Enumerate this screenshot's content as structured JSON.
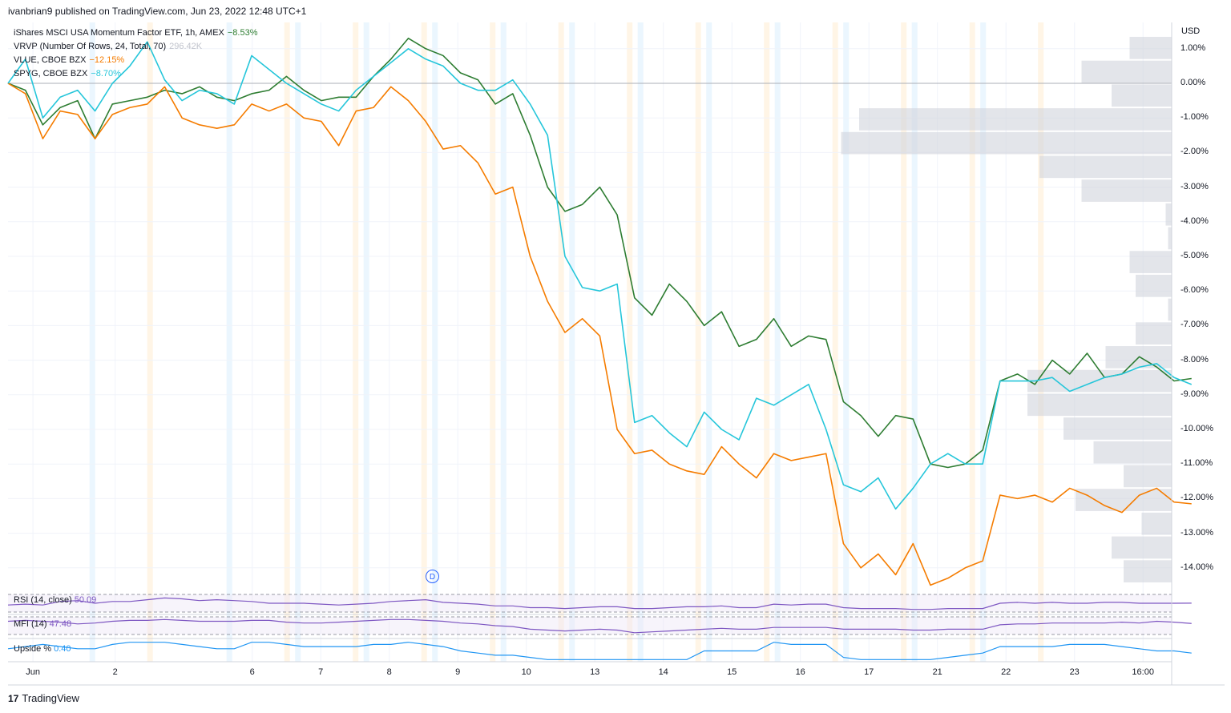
{
  "header": "ivanbrian9 published on TradingView.com, Jun 23, 2022 12:48 UTC+1",
  "legend": [
    {
      "name": "iShares MSCI USA Momentum Factor ETF, 1h, AMEX",
      "value": "−8.53%",
      "color": "#2e7d32"
    },
    {
      "name": "VRVP (Number Of Rows, 24, Total, 70)",
      "value": "296.42K",
      "color": "#d1d4dc"
    },
    {
      "name": "VLUE, CBOE BZX",
      "value": "−12.15%",
      "color": "#f57c00"
    },
    {
      "name": "SPYG, CBOE BZX",
      "value": "−8.70%",
      "color": "#26c6da"
    }
  ],
  "panes": {
    "rsi": {
      "label": "RSI (14, close)",
      "value": "50.09",
      "color": "#7e57c2"
    },
    "mfi": {
      "label": "MFI (14)",
      "value": "47.48",
      "color": "#7e57c2"
    },
    "upside": {
      "label": "Upside %",
      "value": "0.40",
      "color": "#2196f3"
    }
  },
  "footer": {
    "logo": "17",
    "brand": "TradingView"
  },
  "marker": "D",
  "chart_data": {
    "type": "line",
    "currency": "USD",
    "y_ticks": [
      "1.00%",
      "0.00%",
      "-1.00%",
      "-2.00%",
      "-3.00%",
      "-4.00%",
      "-5.00%",
      "-6.00%",
      "-7.00%",
      "-8.00%",
      "-9.00%",
      "-10.00%",
      "-11.00%",
      "-12.00%",
      "-13.00%",
      "-14.00%"
    ],
    "ylim": [
      -14.7,
      1.5
    ],
    "x_ticks": [
      {
        "label": "Jun",
        "i": 1
      },
      {
        "label": "2",
        "i": 7
      },
      {
        "label": "6",
        "i": 17
      },
      {
        "label": "7",
        "i": 22
      },
      {
        "label": "8",
        "i": 27
      },
      {
        "label": "9",
        "i": 32
      },
      {
        "label": "10",
        "i": 37
      },
      {
        "label": "13",
        "i": 42
      },
      {
        "label": "14",
        "i": 47
      },
      {
        "label": "15",
        "i": 52
      },
      {
        "label": "16",
        "i": 57
      },
      {
        "label": "17",
        "i": 62
      },
      {
        "label": "21",
        "i": 67
      },
      {
        "label": "22",
        "i": 72
      },
      {
        "label": "23",
        "i": 77
      },
      {
        "label": "16:00",
        "i": 82
      }
    ],
    "series": [
      {
        "name": "iShares MSCI USA Momentum Factor ETF",
        "color": "#2e7d32",
        "values": [
          0,
          -0.2,
          -1.2,
          -0.7,
          -0.5,
          -1.6,
          -0.6,
          -0.5,
          -0.4,
          -0.2,
          -0.3,
          -0.1,
          -0.4,
          -0.5,
          -0.3,
          -0.2,
          0.2,
          -0.2,
          -0.5,
          -0.4,
          -0.4,
          0.2,
          0.7,
          1.3,
          1.0,
          0.8,
          0.3,
          0.1,
          -0.6,
          -0.3,
          -1.5,
          -3.0,
          -3.7,
          -3.5,
          -3.0,
          -3.8,
          -6.2,
          -6.7,
          -5.8,
          -6.3,
          -7.0,
          -6.6,
          -7.6,
          -7.4,
          -6.8,
          -7.6,
          -7.3,
          -7.4,
          -9.2,
          -9.6,
          -10.2,
          -9.6,
          -9.7,
          -11.0,
          -11.1,
          -11.0,
          -10.6,
          -8.6,
          -8.4,
          -8.7,
          -8.0,
          -8.4,
          -7.8,
          -8.5,
          -8.4,
          -7.9,
          -8.2,
          -8.6,
          -8.53
        ]
      },
      {
        "name": "VLUE, CBOE BZX",
        "color": "#f57c00",
        "values": [
          0,
          -0.3,
          -1.6,
          -0.8,
          -0.9,
          -1.6,
          -0.9,
          -0.7,
          -0.6,
          -0.1,
          -1.0,
          -1.2,
          -1.3,
          -1.2,
          -0.6,
          -0.8,
          -0.6,
          -1.0,
          -1.1,
          -1.8,
          -0.8,
          -0.7,
          -0.1,
          -0.5,
          -1.1,
          -1.9,
          -1.8,
          -2.3,
          -3.2,
          -3.0,
          -5.0,
          -6.3,
          -7.2,
          -6.8,
          -7.3,
          -10.0,
          -10.7,
          -10.6,
          -11.0,
          -11.2,
          -11.3,
          -10.5,
          -11.0,
          -11.4,
          -10.7,
          -10.9,
          -10.8,
          -10.7,
          -13.3,
          -14.0,
          -13.6,
          -14.2,
          -13.3,
          -14.5,
          -14.3,
          -14.0,
          -13.8,
          -11.9,
          -12.0,
          -11.9,
          -12.1,
          -11.7,
          -11.9,
          -12.2,
          -12.4,
          -11.9,
          -11.7,
          -12.1,
          -12.15
        ]
      },
      {
        "name": "SPYG, CBOE BZX",
        "color": "#26c6da",
        "values": [
          0,
          0.7,
          -1.0,
          -0.4,
          -0.2,
          -0.8,
          0.0,
          0.5,
          1.2,
          0.1,
          -0.5,
          -0.2,
          -0.3,
          -0.6,
          0.8,
          0.4,
          0.0,
          -0.3,
          -0.6,
          -0.8,
          -0.2,
          0.2,
          0.6,
          1.0,
          0.7,
          0.5,
          0.0,
          -0.2,
          -0.2,
          0.1,
          -0.6,
          -1.5,
          -5.0,
          -5.9,
          -6.0,
          -5.8,
          -9.8,
          -9.6,
          -10.1,
          -10.5,
          -9.5,
          -10.0,
          -10.3,
          -9.1,
          -9.3,
          -9.0,
          -8.7,
          -10.0,
          -11.6,
          -11.8,
          -11.4,
          -12.3,
          -11.7,
          -11.0,
          -10.7,
          -11.0,
          -11.0,
          -8.6,
          -8.6,
          -8.6,
          -8.5,
          -8.9,
          -8.7,
          -8.5,
          -8.4,
          -8.2,
          -8.1,
          -8.5,
          -8.7
        ]
      }
    ],
    "volume_profile_rows": [
      0.35,
      0.75,
      0.5,
      2.6,
      2.75,
      1.1,
      0.75,
      0.05,
      0.03,
      0.35,
      0.3,
      0.03,
      0.3,
      0.55,
      1.2,
      1.2,
      0.9,
      0.65,
      0.4,
      0.8,
      0.25,
      0.5,
      0.4
    ],
    "rsi_values": [
      48,
      49,
      48,
      52,
      53,
      50,
      52,
      52,
      54,
      56,
      55,
      53,
      54,
      53,
      52,
      50,
      50,
      50,
      49,
      48,
      49,
      50,
      52,
      53,
      54,
      51,
      50,
      49,
      47,
      47,
      45,
      45,
      44,
      45,
      46,
      46,
      44,
      44,
      45,
      46,
      46,
      47,
      45,
      45,
      49,
      48,
      49,
      49,
      45,
      44,
      44,
      44,
      43,
      43,
      44,
      44,
      44,
      50,
      51,
      50,
      51,
      50,
      50,
      51,
      51,
      50,
      50,
      50,
      50.09
    ],
    "mfi_values": [
      50,
      51,
      50,
      49,
      47,
      48,
      50,
      51,
      51,
      52,
      51,
      50,
      50,
      50,
      51,
      51,
      49,
      48,
      48,
      49,
      50,
      51,
      52,
      52,
      51,
      50,
      48,
      47,
      45,
      44,
      41,
      40,
      39,
      40,
      41,
      40,
      37,
      38,
      39,
      40,
      41,
      42,
      41,
      41,
      43,
      43,
      43,
      43,
      41,
      41,
      41,
      41,
      40,
      40,
      41,
      41,
      41,
      46,
      47,
      47,
      48,
      48,
      48,
      48,
      49,
      48,
      50,
      49,
      47.48
    ],
    "upside_values": [
      0.6,
      0.7,
      0.8,
      0.7,
      0.6,
      0.6,
      0.8,
      0.9,
      0.9,
      0.9,
      0.8,
      0.7,
      0.6,
      0.6,
      0.9,
      0.9,
      0.8,
      0.7,
      0.7,
      0.7,
      0.7,
      0.8,
      0.8,
      0.9,
      0.8,
      0.7,
      0.5,
      0.4,
      0.3,
      0.3,
      0.2,
      0.1,
      0.1,
      0.1,
      0.1,
      0.1,
      0.1,
      0.1,
      0.1,
      0.1,
      0.5,
      0.5,
      0.5,
      0.5,
      0.9,
      0.8,
      0.8,
      0.8,
      0.2,
      0.1,
      0.1,
      0.1,
      0.1,
      0.1,
      0.2,
      0.3,
      0.4,
      0.7,
      0.7,
      0.7,
      0.7,
      0.8,
      0.8,
      0.8,
      0.7,
      0.6,
      0.5,
      0.5,
      0.4
    ]
  }
}
